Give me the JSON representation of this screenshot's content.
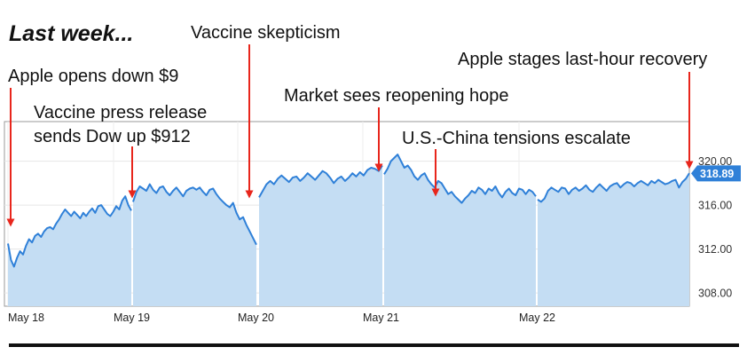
{
  "heading": "Last week...",
  "annotations": [
    {
      "id": "open",
      "text": "Apple opens down $9"
    },
    {
      "id": "press",
      "lines": [
        "Vaccine press release",
        "sends Dow up $912"
      ]
    },
    {
      "id": "skeptic",
      "text": "Vaccine skepticism"
    },
    {
      "id": "reopen",
      "text": "Market sees reopening hope"
    },
    {
      "id": "china",
      "text": "U.S.-China tensions escalate"
    },
    {
      "id": "recovery",
      "text": "Apple stages last-hour recovery"
    }
  ],
  "colors": {
    "line": "#2f80d8",
    "area": "#c4ddf3",
    "arrow": "#e8261c",
    "price_badge": "#2f80d8",
    "grid": "#e6e6e6",
    "plot_border": "#9a9a9a"
  },
  "chart_data": {
    "type": "area",
    "xlabels": [
      "May 18",
      "May 19",
      "May 20",
      "May 21",
      "May 22"
    ],
    "yticks": [
      "320.00",
      "316.00",
      "312.00",
      "308.00"
    ],
    "ylim": [
      306.8,
      323.6
    ],
    "last_price": "318.89",
    "grid": true,
    "sessions": [
      {
        "label": "May 18",
        "values": [
          312.5,
          311.0,
          310.4,
          311.2,
          311.8,
          311.5,
          312.3,
          312.9,
          312.6,
          313.2,
          313.4,
          313.1,
          313.6,
          313.9,
          314.0,
          313.8,
          314.3,
          314.7,
          315.2,
          315.6,
          315.3,
          315.0,
          315.4,
          315.1,
          314.8,
          315.3,
          315.0,
          315.4,
          315.7,
          315.3,
          315.9,
          316.0,
          315.6,
          315.2,
          315.0,
          315.4,
          315.9,
          315.6,
          316.4,
          316.8,
          316.0,
          315.5
        ]
      },
      {
        "label": "May 19",
        "values": [
          316.3,
          317.2,
          317.7,
          317.5,
          317.3,
          317.9,
          317.4,
          317.1,
          317.6,
          317.7,
          317.2,
          316.9,
          317.3,
          317.6,
          317.2,
          316.8,
          317.3,
          317.5,
          317.6,
          317.4,
          317.6,
          317.2,
          316.9,
          317.4,
          317.5,
          317.0,
          316.6,
          316.3,
          316.0,
          315.8,
          316.2,
          315.3,
          314.7,
          314.9,
          314.2,
          313.6,
          313.0,
          312.4
        ]
      },
      {
        "label": "May 20",
        "values": [
          316.7,
          317.3,
          317.9,
          318.2,
          317.9,
          318.4,
          318.7,
          318.4,
          318.1,
          318.5,
          318.6,
          318.2,
          318.5,
          318.9,
          318.6,
          318.3,
          318.7,
          319.1,
          318.9,
          318.5,
          318.0,
          318.4,
          318.6,
          318.2,
          318.5,
          318.9,
          318.6,
          319.0,
          318.7,
          319.2,
          319.4,
          319.3,
          319.1,
          319.6
        ]
      },
      {
        "label": "May 21",
        "values": [
          318.8,
          319.3,
          320.0,
          320.3,
          320.6,
          320.0,
          319.4,
          319.6,
          319.2,
          318.6,
          318.3,
          318.7,
          318.9,
          318.3,
          317.9,
          317.6,
          318.2,
          318.0,
          317.5,
          317.0,
          317.2,
          316.8,
          316.5,
          316.2,
          316.6,
          316.9,
          317.3,
          317.1,
          317.6,
          317.4,
          317.0,
          317.5,
          317.3,
          317.7,
          317.1,
          316.7,
          317.2,
          317.5,
          317.1,
          316.9,
          317.5,
          317.4,
          317.0,
          317.4,
          317.2,
          316.8
        ]
      },
      {
        "label": "May 22",
        "values": [
          316.5,
          316.3,
          316.6,
          317.3,
          317.6,
          317.4,
          317.2,
          317.6,
          317.5,
          317.0,
          317.4,
          317.6,
          317.3,
          317.5,
          317.8,
          317.4,
          317.2,
          317.6,
          317.9,
          317.6,
          317.3,
          317.7,
          317.9,
          318.0,
          317.6,
          317.9,
          318.1,
          318.0,
          317.7,
          318.0,
          318.2,
          318.0,
          317.8,
          318.2,
          318.0,
          318.3,
          318.1,
          317.9,
          318.0,
          318.2,
          318.3,
          317.6,
          318.1,
          318.4,
          318.9
        ]
      }
    ]
  }
}
